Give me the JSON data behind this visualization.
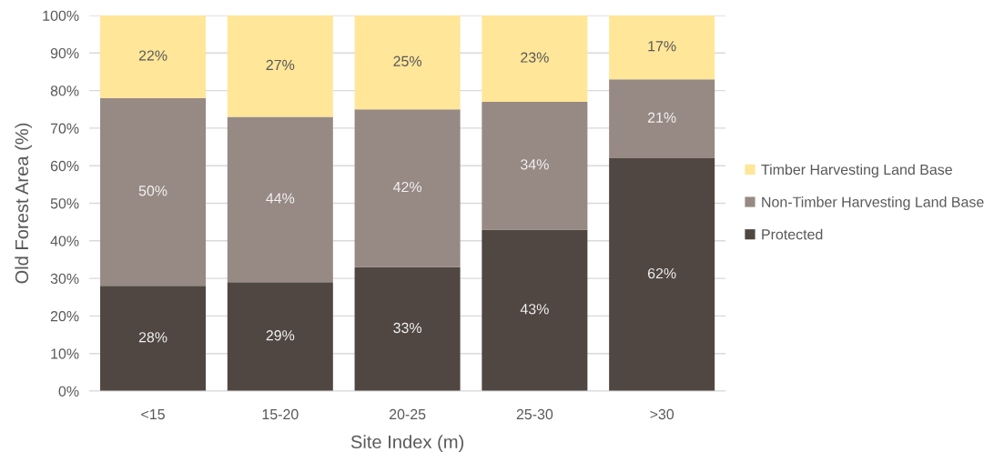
{
  "chart_data": {
    "type": "bar",
    "stacked": true,
    "xlabel": "Site Index (m)",
    "ylabel": "Old Forest Area (%)",
    "categories": [
      "<15",
      "15-20",
      "20-25",
      "25-30",
      ">30"
    ],
    "series": [
      {
        "name": "Protected",
        "color": "#504642",
        "values": [
          28,
          29,
          33,
          43,
          62
        ],
        "value_labels": [
          "28%",
          "29%",
          "33%",
          "43%",
          "62%"
        ]
      },
      {
        "name": "Non-Timber Harvesting Land Base",
        "color": "#978983",
        "values": [
          50,
          44,
          42,
          34,
          21
        ],
        "value_labels": [
          "50%",
          "44%",
          "42%",
          "34%",
          "21%"
        ]
      },
      {
        "name": "Timber Harvesting Land Base",
        "color": "#ffe699",
        "values": [
          22,
          27,
          25,
          23,
          17
        ],
        "value_labels": [
          "22%",
          "27%",
          "25%",
          "23%",
          "17%"
        ]
      }
    ],
    "ylim": [
      0,
      100
    ],
    "yticks": [
      {
        "value": 0,
        "label": "0%"
      },
      {
        "value": 10,
        "label": "10%"
      },
      {
        "value": 20,
        "label": "20%"
      },
      {
        "value": 30,
        "label": "30%"
      },
      {
        "value": 40,
        "label": "40%"
      },
      {
        "value": 50,
        "label": "50%"
      },
      {
        "value": 60,
        "label": "60%"
      },
      {
        "value": 70,
        "label": "70%"
      },
      {
        "value": 80,
        "label": "80%"
      },
      {
        "value": 90,
        "label": "90%"
      },
      {
        "value": 100,
        "label": "100%"
      }
    ],
    "grid": "y",
    "legend": "right"
  }
}
